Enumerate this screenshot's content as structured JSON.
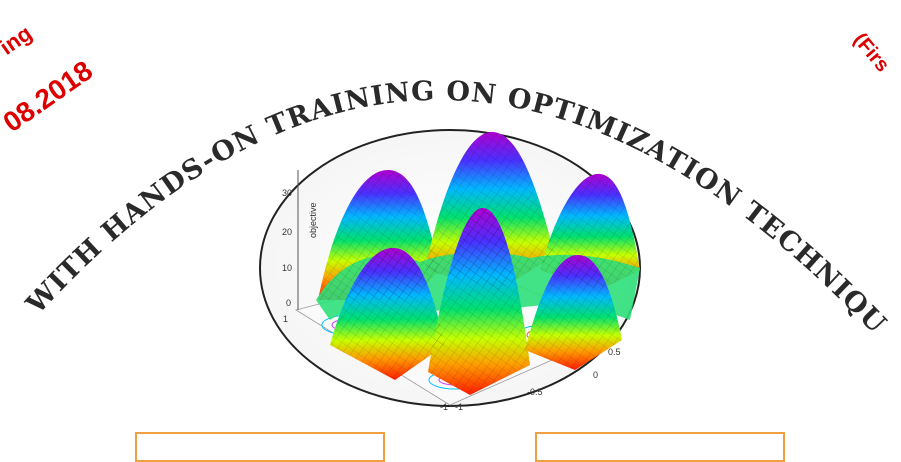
{
  "arc_title": "WITH HANDS-ON TRAINING ON OPTIMIZATION TECHNIQUES",
  "corner_left_line1": "ing",
  "corner_left_line2": "08.2018",
  "corner_right": "(Firs",
  "plot": {
    "ylabel": "objective",
    "z_ticks": [
      "0",
      "10",
      "20",
      "30"
    ],
    "left_axis_ticks": [
      "1",
      "0",
      "-1"
    ],
    "right_axis_ticks": [
      "-1",
      "-0.5",
      "0",
      "0.5"
    ]
  },
  "colors": {
    "arc_text": "#2a2a2a",
    "corner_text": "#dd0000",
    "box_border": "#f0a040"
  }
}
